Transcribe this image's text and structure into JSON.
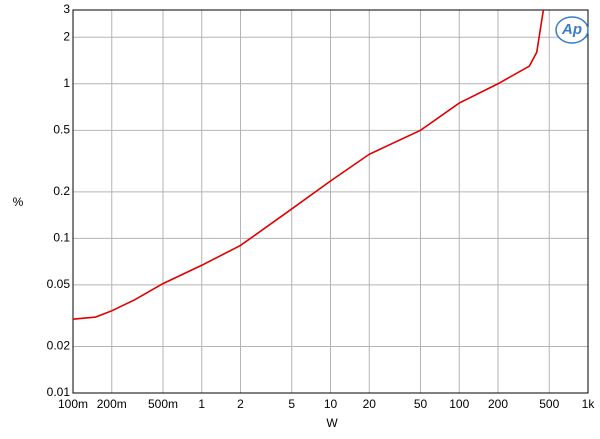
{
  "chart_data": {
    "type": "line",
    "x_label": "W",
    "y_label": "%",
    "logo_text": "Ap",
    "xscale": "log",
    "yscale": "log",
    "grid": true,
    "xlim": [
      0.1,
      1000
    ],
    "ylim": [
      0.01,
      3
    ],
    "xticks": [
      {
        "value": 0.1,
        "label": "100m"
      },
      {
        "value": 0.2,
        "label": "200m"
      },
      {
        "value": 0.5,
        "label": "500m"
      },
      1,
      2,
      5,
      10,
      20,
      50,
      100,
      200,
      500,
      {
        "value": 1000,
        "label": "1k"
      }
    ],
    "yticks": [
      0.01,
      0.02,
      0.05,
      0.1,
      0.2,
      0.5,
      1,
      2,
      3
    ],
    "series": [
      {
        "color": "#e00000",
        "x": [
          0.1,
          0.15,
          0.2,
          0.3,
          0.5,
          1,
          2,
          5,
          10,
          20,
          50,
          100,
          200,
          350,
          400,
          450
        ],
        "values": [
          0.03,
          0.031,
          0.034,
          0.04,
          0.051,
          0.067,
          0.09,
          0.155,
          0.235,
          0.35,
          0.5,
          0.75,
          1.0,
          1.3,
          1.6,
          3
        ]
      }
    ]
  }
}
